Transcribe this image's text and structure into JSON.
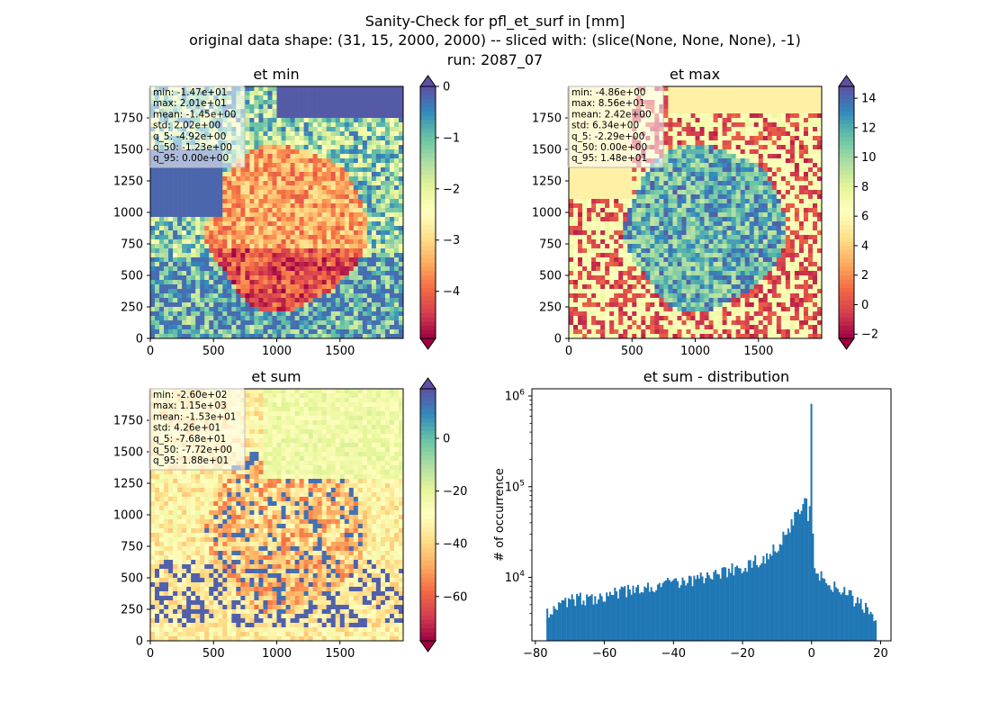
{
  "figure": {
    "title_lines": [
      "Sanity-Check for pfl_et_surf in [mm]",
      "original data shape: (31, 15, 2000, 2000) -- sliced with: (slice(None, None, None), -1)",
      "run: 2087_07"
    ]
  },
  "chart_data": [
    {
      "type": "heatmap",
      "title": "et min",
      "colormap": "Spectral",
      "x_ticks": [
        "0",
        "500",
        "1000",
        "1500"
      ],
      "x_tick_values": [
        0,
        500,
        1000,
        1500
      ],
      "y_ticks": [
        "0",
        "250",
        "500",
        "750",
        "1000",
        "1250",
        "1500",
        "1750"
      ],
      "y_tick_values": [
        0,
        250,
        500,
        750,
        1000,
        1250,
        1500,
        1750
      ],
      "extent": [
        0,
        2000,
        0,
        2000
      ],
      "colorbar": {
        "range": [
          -4.92,
          0.0
        ],
        "ticks": [
          "0",
          "−1",
          "−2",
          "−3",
          "−4"
        ],
        "tick_values": [
          0,
          -1,
          -2,
          -3,
          -4
        ],
        "extend": "both"
      },
      "stats": [
        "min: -1.47e+01",
        "max: 2.01e+01",
        "mean: -1.45e+00",
        "std: 2.02e+00",
        "q_5: -4.92e+00",
        "q_50: -1.23e+00",
        "q_95: 0.00e+00"
      ]
    },
    {
      "type": "heatmap",
      "title": "et max",
      "colormap": "Spectral",
      "x_ticks": [
        "0",
        "500",
        "1000",
        "1500"
      ],
      "x_tick_values": [
        0,
        500,
        1000,
        1500
      ],
      "y_ticks": [
        "0",
        "250",
        "500",
        "750",
        "1000",
        "1250",
        "1500",
        "1750"
      ],
      "y_tick_values": [
        0,
        250,
        500,
        750,
        1000,
        1250,
        1500,
        1750
      ],
      "extent": [
        0,
        2000,
        0,
        2000
      ],
      "colorbar": {
        "range": [
          -2.29,
          14.8
        ],
        "ticks": [
          "14",
          "12",
          "10",
          "8",
          "6",
          "4",
          "2",
          "0",
          "−2"
        ],
        "tick_values": [
          14,
          12,
          10,
          8,
          6,
          4,
          2,
          0,
          -2
        ],
        "extend": "both"
      },
      "stats": [
        "min: -4.86e+00",
        "max: 8.56e+01",
        "mean: 2.42e+00",
        "std: 6.34e+00",
        "q_5: -2.29e+00",
        "q_50: 0.00e+00",
        "q_95: 1.48e+01"
      ]
    },
    {
      "type": "heatmap",
      "title": "et sum",
      "colormap": "Spectral",
      "x_ticks": [
        "0",
        "500",
        "1000",
        "1500"
      ],
      "x_tick_values": [
        0,
        500,
        1000,
        1500
      ],
      "y_ticks": [
        "0",
        "250",
        "500",
        "750",
        "1000",
        "1250",
        "1500",
        "1750"
      ],
      "y_tick_values": [
        0,
        250,
        500,
        750,
        1000,
        1250,
        1500,
        1750
      ],
      "extent": [
        0,
        2000,
        0,
        2000
      ],
      "colorbar": {
        "range": [
          -76.8,
          18.8
        ],
        "ticks": [
          "0",
          "−20",
          "−40",
          "−60"
        ],
        "tick_values": [
          0,
          -20,
          -40,
          -60
        ],
        "extend": "both"
      },
      "stats": [
        "min: -2.60e+02",
        "max: 1.15e+03",
        "mean: -1.53e+01",
        "std: 4.26e+01",
        "q_5: -7.68e+01",
        "q_50: -7.72e+00",
        "q_95: 1.88e+01"
      ]
    },
    {
      "type": "bar",
      "title": "et sum - distribution",
      "xlabel": "",
      "ylabel": "# of occurrence",
      "yscale": "log",
      "xlim": [
        -81,
        23
      ],
      "ylim": [
        2000,
        1200000
      ],
      "x_ticks": [
        "−80",
        "−60",
        "−40",
        "−20",
        "0",
        "20"
      ],
      "x_tick_values": [
        -80,
        -60,
        -40,
        -20,
        0,
        20
      ],
      "y_ticks": [
        "10^4",
        "10^5",
        "10^6"
      ],
      "y_tick_values": [
        10000,
        100000,
        1000000
      ],
      "color": "#1f77b4",
      "bin_range": [
        -76.8,
        18.8
      ],
      "bins": [
        [
          -76.8,
          4200
        ],
        [
          -70,
          5600
        ],
        [
          -65,
          5900
        ],
        [
          -60,
          6400
        ],
        [
          -55,
          6800
        ],
        [
          -50,
          7400
        ],
        [
          -45,
          8000
        ],
        [
          -40,
          8700
        ],
        [
          -35,
          9500
        ],
        [
          -30,
          10300
        ],
        [
          -25,
          11600
        ],
        [
          -20,
          13200
        ],
        [
          -15,
          15500
        ],
        [
          -12,
          18500
        ],
        [
          -10,
          22000
        ],
        [
          -8,
          28000
        ],
        [
          -6,
          38000
        ],
        [
          -4,
          55000
        ],
        [
          -3,
          65000
        ],
        [
          -2,
          75000
        ],
        [
          -1.5,
          90000
        ],
        [
          -1,
          45000
        ],
        [
          -0.5,
          60000
        ],
        [
          0,
          820000
        ],
        [
          0.5,
          14000
        ],
        [
          2,
          10500
        ],
        [
          4,
          9200
        ],
        [
          6,
          8200
        ],
        [
          8,
          7400
        ],
        [
          10,
          6600
        ],
        [
          12,
          5900
        ],
        [
          14,
          5200
        ],
        [
          16,
          4400
        ],
        [
          17.5,
          3600
        ],
        [
          18.8,
          3300
        ]
      ]
    }
  ]
}
